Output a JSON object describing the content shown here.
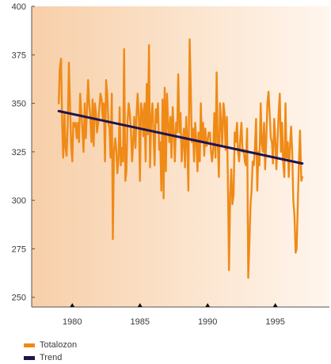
{
  "chart_data": {
    "type": "line",
    "xlim": [
      1977.0,
      1999.0
    ],
    "ylim": [
      245,
      400
    ],
    "y_ticks": [
      250,
      275,
      300,
      325,
      350,
      375,
      400
    ],
    "x_ticks": [
      1980,
      1985,
      1990,
      1995
    ],
    "background": "gradient, light orange left to pale right",
    "grid": false,
    "series": [
      {
        "name": "Totalozon",
        "color": "#ef8a17",
        "x": [
          1979.0,
          1979.08,
          1979.17,
          1979.25,
          1979.33,
          1979.42,
          1979.5,
          1979.58,
          1979.67,
          1979.75,
          1979.83,
          1979.92,
          1980.0,
          1980.08,
          1980.17,
          1980.25,
          1980.33,
          1980.42,
          1980.5,
          1980.58,
          1980.67,
          1980.75,
          1980.83,
          1980.92,
          1981.0,
          1981.08,
          1981.17,
          1981.25,
          1981.33,
          1981.42,
          1981.5,
          1981.58,
          1981.67,
          1981.75,
          1981.83,
          1981.92,
          1982.0,
          1982.08,
          1982.17,
          1982.25,
          1982.33,
          1982.42,
          1982.5,
          1982.58,
          1982.67,
          1982.75,
          1982.83,
          1982.92,
          1983.0,
          1983.08,
          1983.17,
          1983.25,
          1983.33,
          1983.42,
          1983.5,
          1983.58,
          1983.67,
          1983.75,
          1983.83,
          1983.92,
          1984.0,
          1984.08,
          1984.17,
          1984.25,
          1984.33,
          1984.42,
          1984.5,
          1984.58,
          1984.67,
          1984.75,
          1984.83,
          1984.92,
          1985.0,
          1985.08,
          1985.17,
          1985.25,
          1985.33,
          1985.42,
          1985.5,
          1985.58,
          1985.67,
          1985.75,
          1985.83,
          1985.92,
          1986.0,
          1986.08,
          1986.17,
          1986.25,
          1986.33,
          1986.42,
          1986.5,
          1986.58,
          1986.67,
          1986.75,
          1986.83,
          1986.92,
          1987.0,
          1987.08,
          1987.17,
          1987.25,
          1987.33,
          1987.42,
          1987.5,
          1987.58,
          1987.67,
          1987.75,
          1987.83,
          1987.92,
          1988.0,
          1988.08,
          1988.17,
          1988.25,
          1988.33,
          1988.42,
          1988.5,
          1988.58,
          1988.67,
          1988.75,
          1988.83,
          1988.92,
          1989.0,
          1989.08,
          1989.17,
          1989.25,
          1989.33,
          1989.42,
          1989.5,
          1989.58,
          1989.67,
          1989.75,
          1989.83,
          1989.92,
          1990.0,
          1990.08,
          1990.17,
          1990.25,
          1990.33,
          1990.42,
          1990.5,
          1990.58,
          1990.67,
          1990.75,
          1990.83,
          1990.92,
          1991.0,
          1991.08,
          1991.17,
          1991.25,
          1991.33,
          1991.42,
          1991.5,
          1991.58,
          1991.67,
          1991.75,
          1991.83,
          1991.92,
          1992.0,
          1992.08,
          1992.17,
          1992.25,
          1992.33,
          1992.42,
          1992.5,
          1992.58,
          1992.67,
          1992.75,
          1992.83,
          1992.92,
          1993.0,
          1993.08,
          1993.17,
          1993.25,
          1993.33,
          1993.42,
          1993.5,
          1993.58,
          1993.67,
          1993.75,
          1993.83,
          1993.92,
          1994.0,
          1994.08,
          1994.17,
          1994.25,
          1994.33,
          1994.42,
          1994.5,
          1994.58,
          1994.67,
          1994.75,
          1994.83,
          1994.92,
          1995.0,
          1995.08,
          1995.17,
          1995.25,
          1995.33,
          1995.42,
          1995.5,
          1995.58,
          1995.67,
          1995.75,
          1995.83,
          1995.92,
          1996.0,
          1996.08,
          1996.17,
          1996.25,
          1996.33,
          1996.42,
          1996.5,
          1996.58,
          1996.67,
          1996.75,
          1996.83,
          1996.92,
          1997.0
        ],
        "values": [
          350,
          368,
          373,
          340,
          322,
          345,
          327,
          323,
          340,
          371,
          350,
          328,
          320,
          340,
          338,
          340,
          332,
          340,
          330,
          355,
          345,
          336,
          325,
          350,
          332,
          345,
          362,
          350,
          343,
          330,
          352,
          328,
          350,
          345,
          335,
          340,
          348,
          355,
          352,
          342,
          350,
          320,
          362,
          355,
          340,
          337,
          322,
          355,
          280,
          325,
          332,
          326,
          314,
          322,
          348,
          318,
          327,
          320,
          378,
          310,
          315,
          340,
          350,
          345,
          336,
          320,
          330,
          343,
          327,
          345,
          355,
          342,
          310,
          350,
          346,
          333,
          350,
          320,
          360,
          334,
          380,
          317,
          341,
          350,
          335,
          318,
          347,
          340,
          350,
          326,
          330,
          305,
          352,
          301,
          358,
          315,
          355,
          340,
          330,
          343,
          322,
          348,
          335,
          320,
          340,
          335,
          365,
          335,
          345,
          320,
          330,
          337,
          317,
          343,
          330,
          305,
          383,
          360,
          330,
          337,
          320,
          340,
          330,
          315,
          335,
          320,
          350,
          330,
          340,
          323,
          337,
          328,
          330,
          335,
          335,
          325,
          320,
          327,
          345,
          322,
          366,
          330,
          312,
          350,
          340,
          328,
          350,
          345,
          326,
          343,
          310,
          264,
          303,
          316,
          298,
          303,
          335,
          330,
          340,
          325,
          320,
          332,
          340,
          325,
          326,
          320,
          318,
          337,
          260,
          276,
          298,
          305,
          320,
          318,
          328,
          342,
          305,
          325,
          318,
          350,
          330,
          325,
          340,
          316,
          330,
          350,
          356,
          345,
          332,
          330,
          319,
          342,
          332,
          316,
          330,
          345,
          355,
          325,
          340,
          320,
          312,
          350,
          322,
          330,
          312,
          327,
          338,
          325,
          300,
          292,
          273,
          275,
          300,
          320,
          336,
          310,
          312
        ]
      },
      {
        "name": "Trend",
        "color": "#1d1452",
        "x": [
          1979.0,
          1997.0
        ],
        "values": [
          346,
          319
        ]
      }
    ]
  },
  "legend": {
    "items": [
      {
        "label": "Totalozon",
        "color": "#ef8a17"
      },
      {
        "label": "Trend",
        "color": "#1d1452"
      }
    ]
  }
}
